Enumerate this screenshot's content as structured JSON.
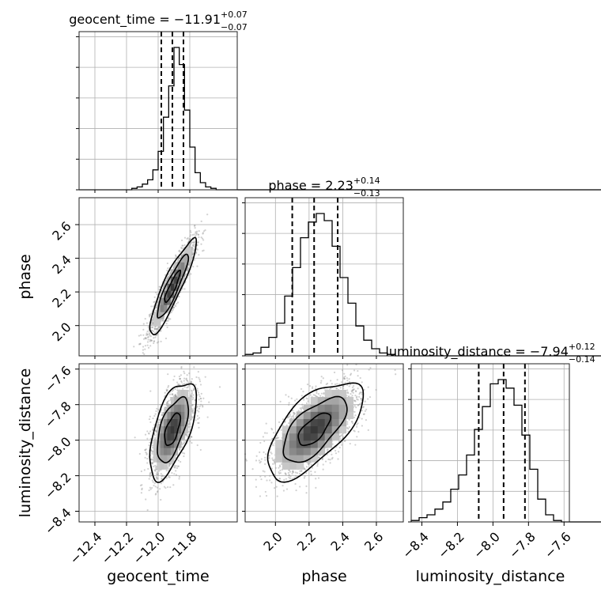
{
  "chart_data": {
    "type": "corner",
    "parameters": [
      "geocent_time",
      "phase",
      "luminosity_distance"
    ],
    "ranges": {
      "geocent_time": [
        -12.5,
        -11.5
      ],
      "phase": [
        1.82,
        2.76
      ],
      "luminosity_distance": [
        -8.46,
        -7.57
      ]
    },
    "ticks": {
      "geocent_time": [
        "−12.4",
        "−12.2",
        "−12.0",
        "−11.8"
      ],
      "phase": [
        "2.0",
        "2.2",
        "2.4",
        "2.6"
      ],
      "luminosity_distance": [
        "−8.4",
        "−8.2",
        "−8.0",
        "−7.8",
        "−7.6"
      ]
    },
    "tick_values": {
      "geocent_time": [
        -12.4,
        -12.2,
        -12.0,
        -11.8
      ],
      "phase": [
        2.0,
        2.2,
        2.4,
        2.6
      ],
      "luminosity_distance": [
        -8.4,
        -8.2,
        -8.0,
        -7.8,
        -7.6
      ]
    },
    "marginals": [
      {
        "parameter": "geocent_time",
        "title_main": "geocent_time = −11.91",
        "title_sup": "+0.07",
        "title_sub": "−0.07",
        "median": -11.91,
        "lower": -11.98,
        "upper": -11.84,
        "hist": [
          0,
          0,
          0,
          0,
          0,
          0,
          0,
          0,
          0,
          0,
          1,
          2,
          4,
          7,
          14,
          27,
          51,
          73,
          100,
          88,
          56,
          30,
          12,
          5,
          2,
          1,
          0,
          0,
          0,
          0
        ]
      },
      {
        "parameter": "phase",
        "title_main": "phase = 2.23",
        "title_sup": "+0.14",
        "title_sub": "−0.13",
        "median": 2.23,
        "lower": 2.1,
        "upper": 2.37,
        "hist": [
          1,
          2,
          6,
          13,
          23,
          42,
          62,
          83,
          94,
          100,
          95,
          77,
          55,
          37,
          21,
          11,
          5,
          2,
          1,
          0
        ]
      },
      {
        "parameter": "luminosity_distance",
        "title_main": "luminosity_distance = −7.94",
        "title_sup": "+0.12",
        "title_sub": "−0.14",
        "median": -7.94,
        "lower": -8.08,
        "upper": -7.82,
        "hist": [
          1,
          3,
          5,
          9,
          14,
          23,
          33,
          47,
          65,
          81,
          97,
          100,
          94,
          82,
          61,
          37,
          16,
          5,
          1,
          0
        ]
      }
    ],
    "joint": [
      {
        "x": "geocent_time",
        "y": "phase",
        "mean": [
          -11.91,
          2.23
        ],
        "sd": [
          0.07,
          0.135
        ],
        "corr": 0.9
      },
      {
        "x": "geocent_time",
        "y": "luminosity_distance",
        "mean": [
          -11.91,
          -7.94
        ],
        "sd": [
          0.07,
          0.13
        ],
        "corr": 0.6
      },
      {
        "x": "phase",
        "y": "luminosity_distance",
        "mean": [
          2.23,
          -7.94
        ],
        "sd": [
          0.135,
          0.13
        ],
        "corr": 0.65
      }
    ],
    "grid": true
  }
}
